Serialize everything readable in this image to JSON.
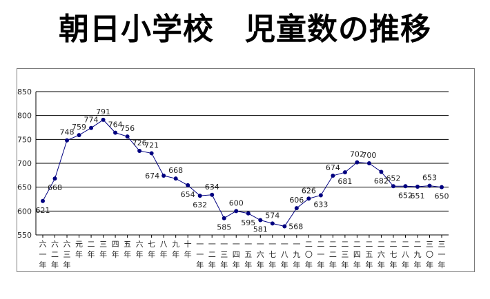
{
  "chart_data": {
    "type": "line",
    "title": "朝日小学校　児童数の推移",
    "xlabel": "",
    "ylabel": "",
    "ylim": [
      550,
      850
    ],
    "yticks": [
      550,
      600,
      650,
      700,
      750,
      800,
      850
    ],
    "grid": true,
    "legend": "none",
    "categories": [
      [
        "六",
        "一",
        "年"
      ],
      [
        "六",
        "二",
        "年"
      ],
      [
        "六",
        "三",
        "年"
      ],
      [
        "元",
        "年"
      ],
      [
        "二",
        "年"
      ],
      [
        "三",
        "年"
      ],
      [
        "四",
        "年"
      ],
      [
        "五",
        "年"
      ],
      [
        "六",
        "年"
      ],
      [
        "七",
        "年"
      ],
      [
        "八",
        "年"
      ],
      [
        "九",
        "年"
      ],
      [
        "十",
        "年"
      ],
      [
        "一",
        "一",
        "年"
      ],
      [
        "一",
        "二",
        "年"
      ],
      [
        "一",
        "三",
        "年"
      ],
      [
        "一",
        "四",
        "年"
      ],
      [
        "一",
        "五",
        "年"
      ],
      [
        "一",
        "六",
        "年"
      ],
      [
        "一",
        "七",
        "年"
      ],
      [
        "一",
        "八",
        "年"
      ],
      [
        "一",
        "九",
        "年"
      ],
      [
        "二",
        "〇",
        "年"
      ],
      [
        "二",
        "一",
        "年"
      ],
      [
        "二",
        "二",
        "年"
      ],
      [
        "二",
        "三",
        "年"
      ],
      [
        "二",
        "四",
        "年"
      ],
      [
        "二",
        "五",
        "年"
      ],
      [
        "二",
        "六",
        "年"
      ],
      [
        "二",
        "七",
        "年"
      ],
      [
        "二",
        "八",
        "年"
      ],
      [
        "二",
        "九",
        "年"
      ],
      [
        "三",
        "〇",
        "年"
      ],
      [
        "三",
        "一",
        "年"
      ]
    ],
    "series": [
      {
        "values": [
          621,
          668,
          748,
          759,
          774,
          791,
          764,
          756,
          726,
          721,
          674,
          668,
          654,
          632,
          634,
          585,
          600,
          595,
          581,
          574,
          568,
          606,
          626,
          633,
          674,
          681,
          702,
          700,
          682,
          652,
          652,
          651,
          653,
          650
        ],
        "color": "#000080"
      }
    ],
    "label_positions": [
      "below",
      "below",
      "above",
      "above",
      "above",
      "above",
      "above",
      "above",
      "above",
      "above",
      "left",
      "above",
      "below",
      "below",
      "above",
      "below",
      "above",
      "below",
      "below",
      "above",
      "right",
      "above",
      "above",
      "below",
      "above",
      "below",
      "above",
      "above",
      "below",
      "above",
      "below",
      "below",
      "above",
      "below"
    ]
  }
}
